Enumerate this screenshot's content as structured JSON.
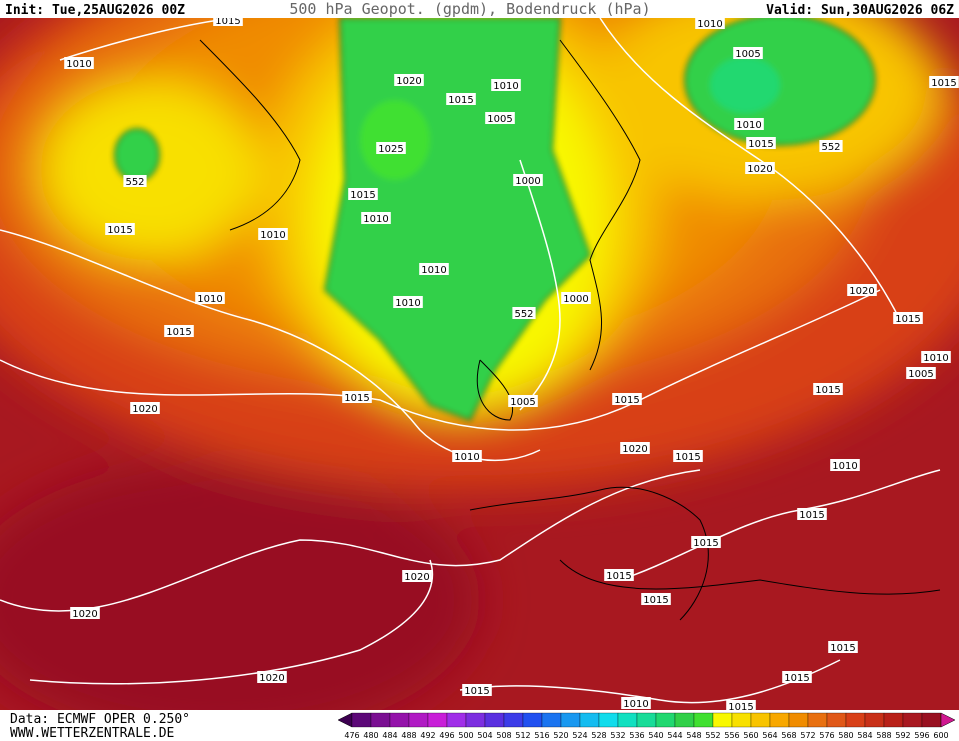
{
  "header": {
    "init": "Init: Tue,25AUG2026 00Z",
    "title": "500 hPa Geopot. (gpdm), Bodendruck (hPa)",
    "valid": "Valid: Sun,30AUG2026 06Z"
  },
  "map": {
    "isobar_labels": [
      1015,
      1010,
      1010,
      1020,
      1015,
      1010,
      1005,
      1005,
      1025,
      1010,
      1015,
      552,
      552,
      1000,
      1020,
      1015,
      1010,
      1015,
      1010,
      1010,
      1010,
      1010,
      1000,
      552,
      1020,
      1015,
      1015,
      1010,
      1005,
      1015,
      1015,
      1005,
      1015,
      1020,
      1020,
      1015,
      1010,
      1010,
      1015,
      1015,
      1020,
      1015,
      1015,
      1020,
      1015,
      1015,
      1020,
      1015,
      1010,
      1015,
      1015
    ]
  },
  "colorbar": {
    "labels": [
      476,
      480,
      484,
      488,
      492,
      496,
      500,
      504,
      508,
      512,
      516,
      520,
      524,
      528,
      532,
      536,
      540,
      544,
      548,
      552,
      556,
      560,
      564,
      568,
      572,
      576,
      580,
      584,
      588,
      592,
      596,
      600
    ],
    "colors": [
      "#3c0050",
      "#5c0878",
      "#7a0f92",
      "#9412aa",
      "#b01ac4",
      "#c81ed8",
      "#a02ee8",
      "#7c2ee0",
      "#5a30e0",
      "#3c3ce8",
      "#2050f0",
      "#1a74f0",
      "#1898f0",
      "#14bcf0",
      "#10dcec",
      "#10e0c0",
      "#18dc98",
      "#20d870",
      "#30d048",
      "#40e030",
      "#f8f800",
      "#f8e000",
      "#f8c400",
      "#f8a800",
      "#f08c00",
      "#e87010",
      "#e05818",
      "#d84018",
      "#c83018",
      "#b82018",
      "#a81820",
      "#981020",
      "#d01890"
    ]
  },
  "footer": {
    "source": "Data: ECMWF OPER 0.250°",
    "site": "WWW.WETTERZENTRALE.DE"
  }
}
